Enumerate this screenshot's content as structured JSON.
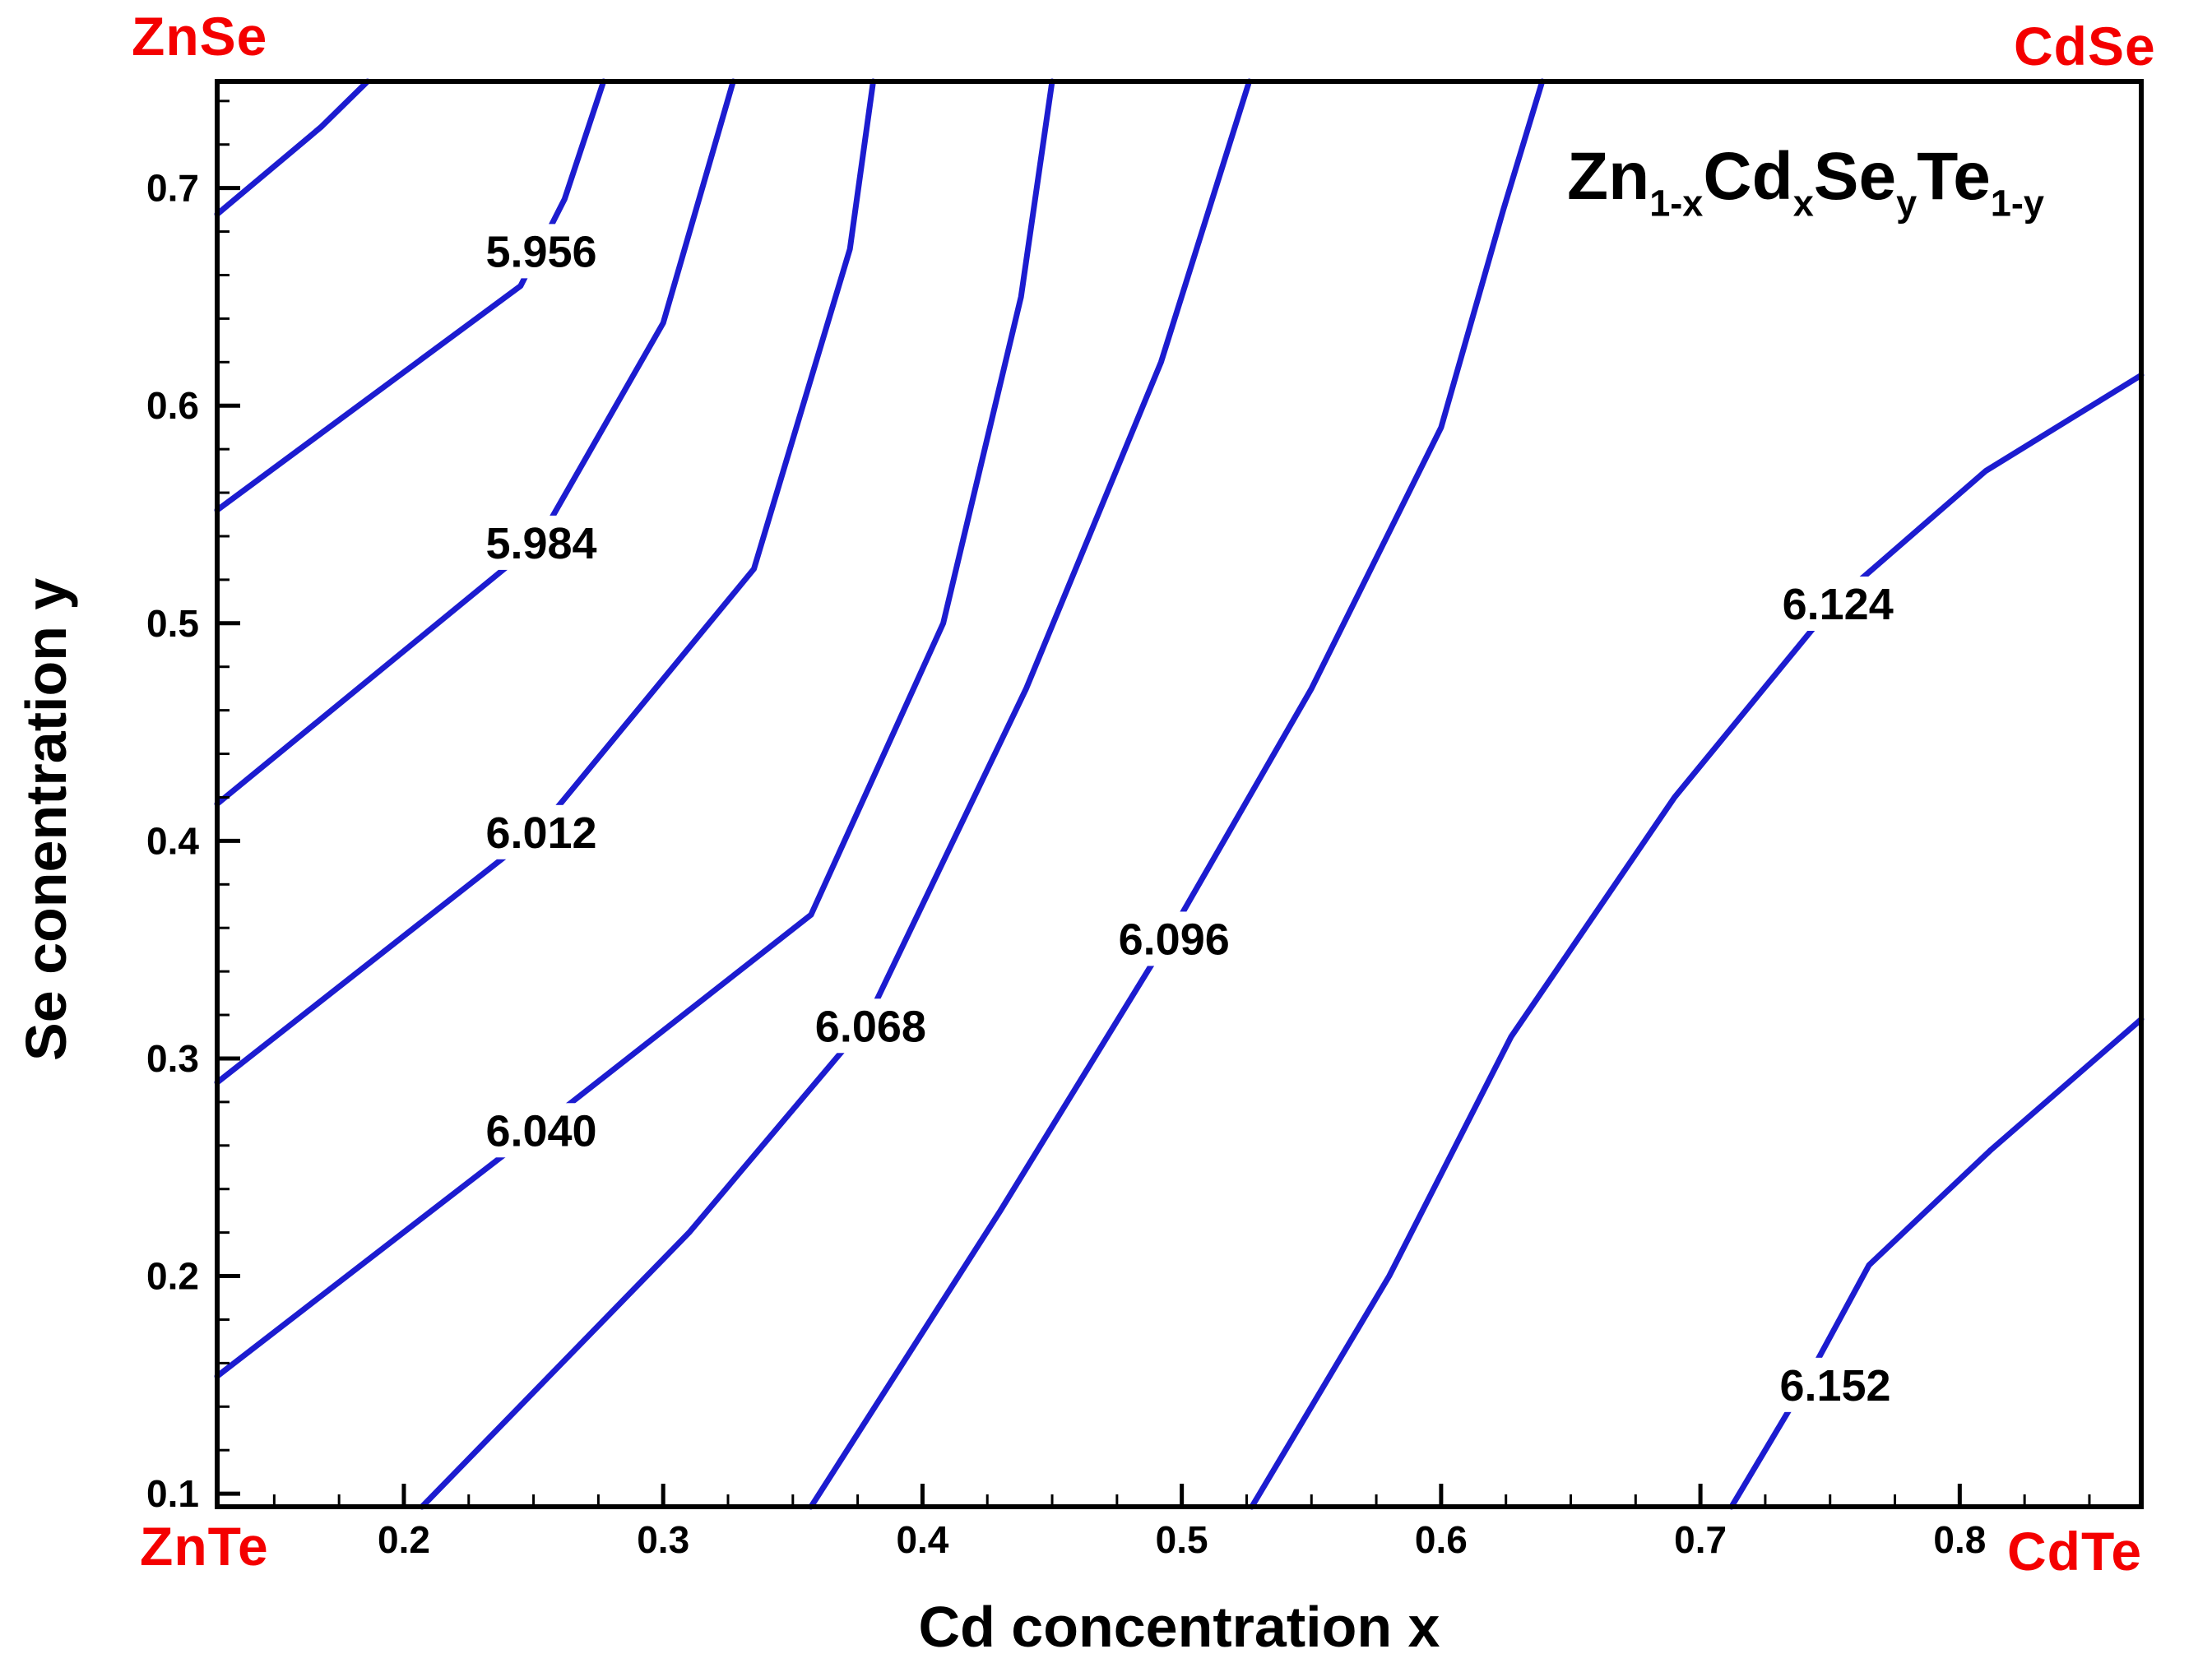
{
  "chart_data": {
    "type": "contour",
    "title": "Zn1-xCdxSeyTe1-y",
    "formula_parts": [
      {
        "t": "Zn"
      },
      {
        "t": "1-x",
        "sub": true
      },
      {
        "t": "Cd"
      },
      {
        "t": "x",
        "sub": true
      },
      {
        "t": "Se"
      },
      {
        "t": "y",
        "sub": true
      },
      {
        "t": "Te"
      },
      {
        "t": "1-y",
        "sub": true
      }
    ],
    "xlabel": "Cd concentration x",
    "ylabel": "Se conentration y",
    "xlim": [
      0.128,
      0.87
    ],
    "ylim": [
      0.094,
      0.749
    ],
    "x_major_ticks": [
      0.2,
      0.3,
      0.4,
      0.5,
      0.6,
      0.7,
      0.8
    ],
    "x_minor_step": 0.025,
    "y_major_ticks": [
      0.1,
      0.2,
      0.3,
      0.4,
      0.5,
      0.6,
      0.7
    ],
    "y_minor_step": 0.02,
    "corner_labels": {
      "top_left": "ZnSe",
      "top_right": "CdSe",
      "bottom_left": "ZnTe",
      "bottom_right": "CdTe"
    },
    "colors": {
      "contour": "#1c1cd0",
      "corner": "#f40000",
      "axis": "#000000",
      "background": "#ffffff"
    },
    "contour_interval": 0.028,
    "contours": [
      {
        "value": 5.928,
        "label": "",
        "points": [
          [
            0.128,
            0.688
          ],
          [
            0.168,
            0.728
          ],
          [
            0.186,
            0.749
          ]
        ]
      },
      {
        "value": 5.956,
        "label": "5.956",
        "label_pos": [
          0.253,
          0.671
        ],
        "points": [
          [
            0.128,
            0.552
          ],
          [
            0.245,
            0.655
          ],
          [
            0.262,
            0.695
          ],
          [
            0.277,
            0.749
          ]
        ]
      },
      {
        "value": 5.984,
        "label": "5.984",
        "label_pos": [
          0.253,
          0.537
        ],
        "points": [
          [
            0.128,
            0.417
          ],
          [
            0.252,
            0.538
          ],
          [
            0.3,
            0.638
          ],
          [
            0.327,
            0.749
          ]
        ]
      },
      {
        "value": 6.012,
        "label": "6.012",
        "label_pos": [
          0.253,
          0.404
        ],
        "points": [
          [
            0.128,
            0.289
          ],
          [
            0.252,
            0.405
          ],
          [
            0.335,
            0.525
          ],
          [
            0.372,
            0.672
          ],
          [
            0.381,
            0.749
          ]
        ]
      },
      {
        "value": 6.04,
        "label": "6.040",
        "label_pos": [
          0.253,
          0.267
        ],
        "points": [
          [
            0.128,
            0.154
          ],
          [
            0.252,
            0.268
          ],
          [
            0.357,
            0.366
          ],
          [
            0.408,
            0.5
          ],
          [
            0.438,
            0.65
          ],
          [
            0.45,
            0.749
          ]
        ]
      },
      {
        "value": 6.068,
        "label": "6.068",
        "label_pos": [
          0.38,
          0.315
        ],
        "points": [
          [
            0.207,
            0.094
          ],
          [
            0.31,
            0.22
          ],
          [
            0.378,
            0.316
          ],
          [
            0.44,
            0.47
          ],
          [
            0.492,
            0.62
          ],
          [
            0.526,
            0.749
          ]
        ]
      },
      {
        "value": 6.096,
        "label": "6.096",
        "label_pos": [
          0.497,
          0.355
        ],
        "points": [
          [
            0.357,
            0.094
          ],
          [
            0.43,
            0.23
          ],
          [
            0.495,
            0.356
          ],
          [
            0.55,
            0.47
          ],
          [
            0.6,
            0.59
          ],
          [
            0.624,
            0.69
          ],
          [
            0.639,
            0.749
          ]
        ]
      },
      {
        "value": 6.124,
        "label": "6.124",
        "label_pos": [
          0.753,
          0.509
        ],
        "points": [
          [
            0.527,
            0.094
          ],
          [
            0.58,
            0.2
          ],
          [
            0.627,
            0.31
          ],
          [
            0.69,
            0.42
          ],
          [
            0.752,
            0.51
          ],
          [
            0.81,
            0.57
          ],
          [
            0.87,
            0.614
          ]
        ]
      },
      {
        "value": 6.152,
        "label": "6.152",
        "label_pos": [
          0.752,
          0.15
        ],
        "points": [
          [
            0.712,
            0.094
          ],
          [
            0.74,
            0.15
          ],
          [
            0.765,
            0.205
          ],
          [
            0.812,
            0.258
          ],
          [
            0.87,
            0.318
          ]
        ]
      }
    ]
  }
}
